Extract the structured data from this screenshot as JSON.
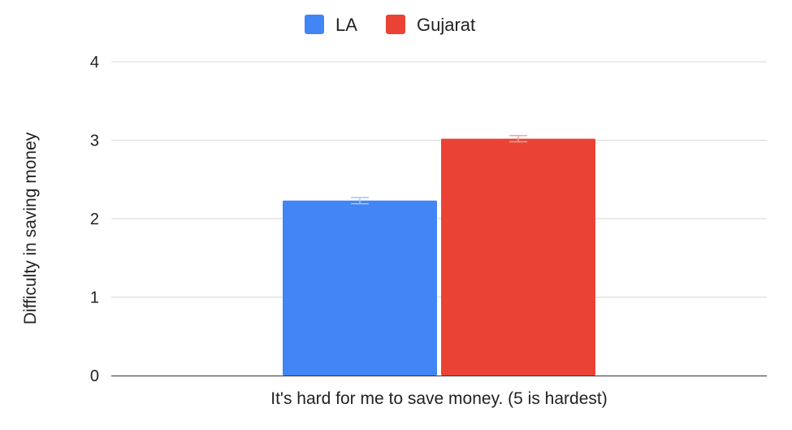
{
  "chart_data": {
    "type": "bar",
    "categories": [
      "It's hard for me to save money. (5 is hardest)"
    ],
    "series": [
      {
        "name": "LA",
        "values": [
          2.23
        ],
        "error": [
          0.04
        ],
        "color": "#4285F4",
        "error_color": "#A9C4F5"
      },
      {
        "name": "Gujarat",
        "values": [
          3.02
        ],
        "error": [
          0.04
        ],
        "color": "#EA4335",
        "error_color": "#F2A69F"
      }
    ],
    "xlabel": "It's hard for me to save money. (5 is hardest)",
    "ylabel": "Difficulty in saving money",
    "ylim": [
      0,
      4
    ],
    "yticks": [
      "0",
      "1",
      "2",
      "3",
      "4"
    ],
    "grid": true,
    "legend_position": "top-center"
  }
}
